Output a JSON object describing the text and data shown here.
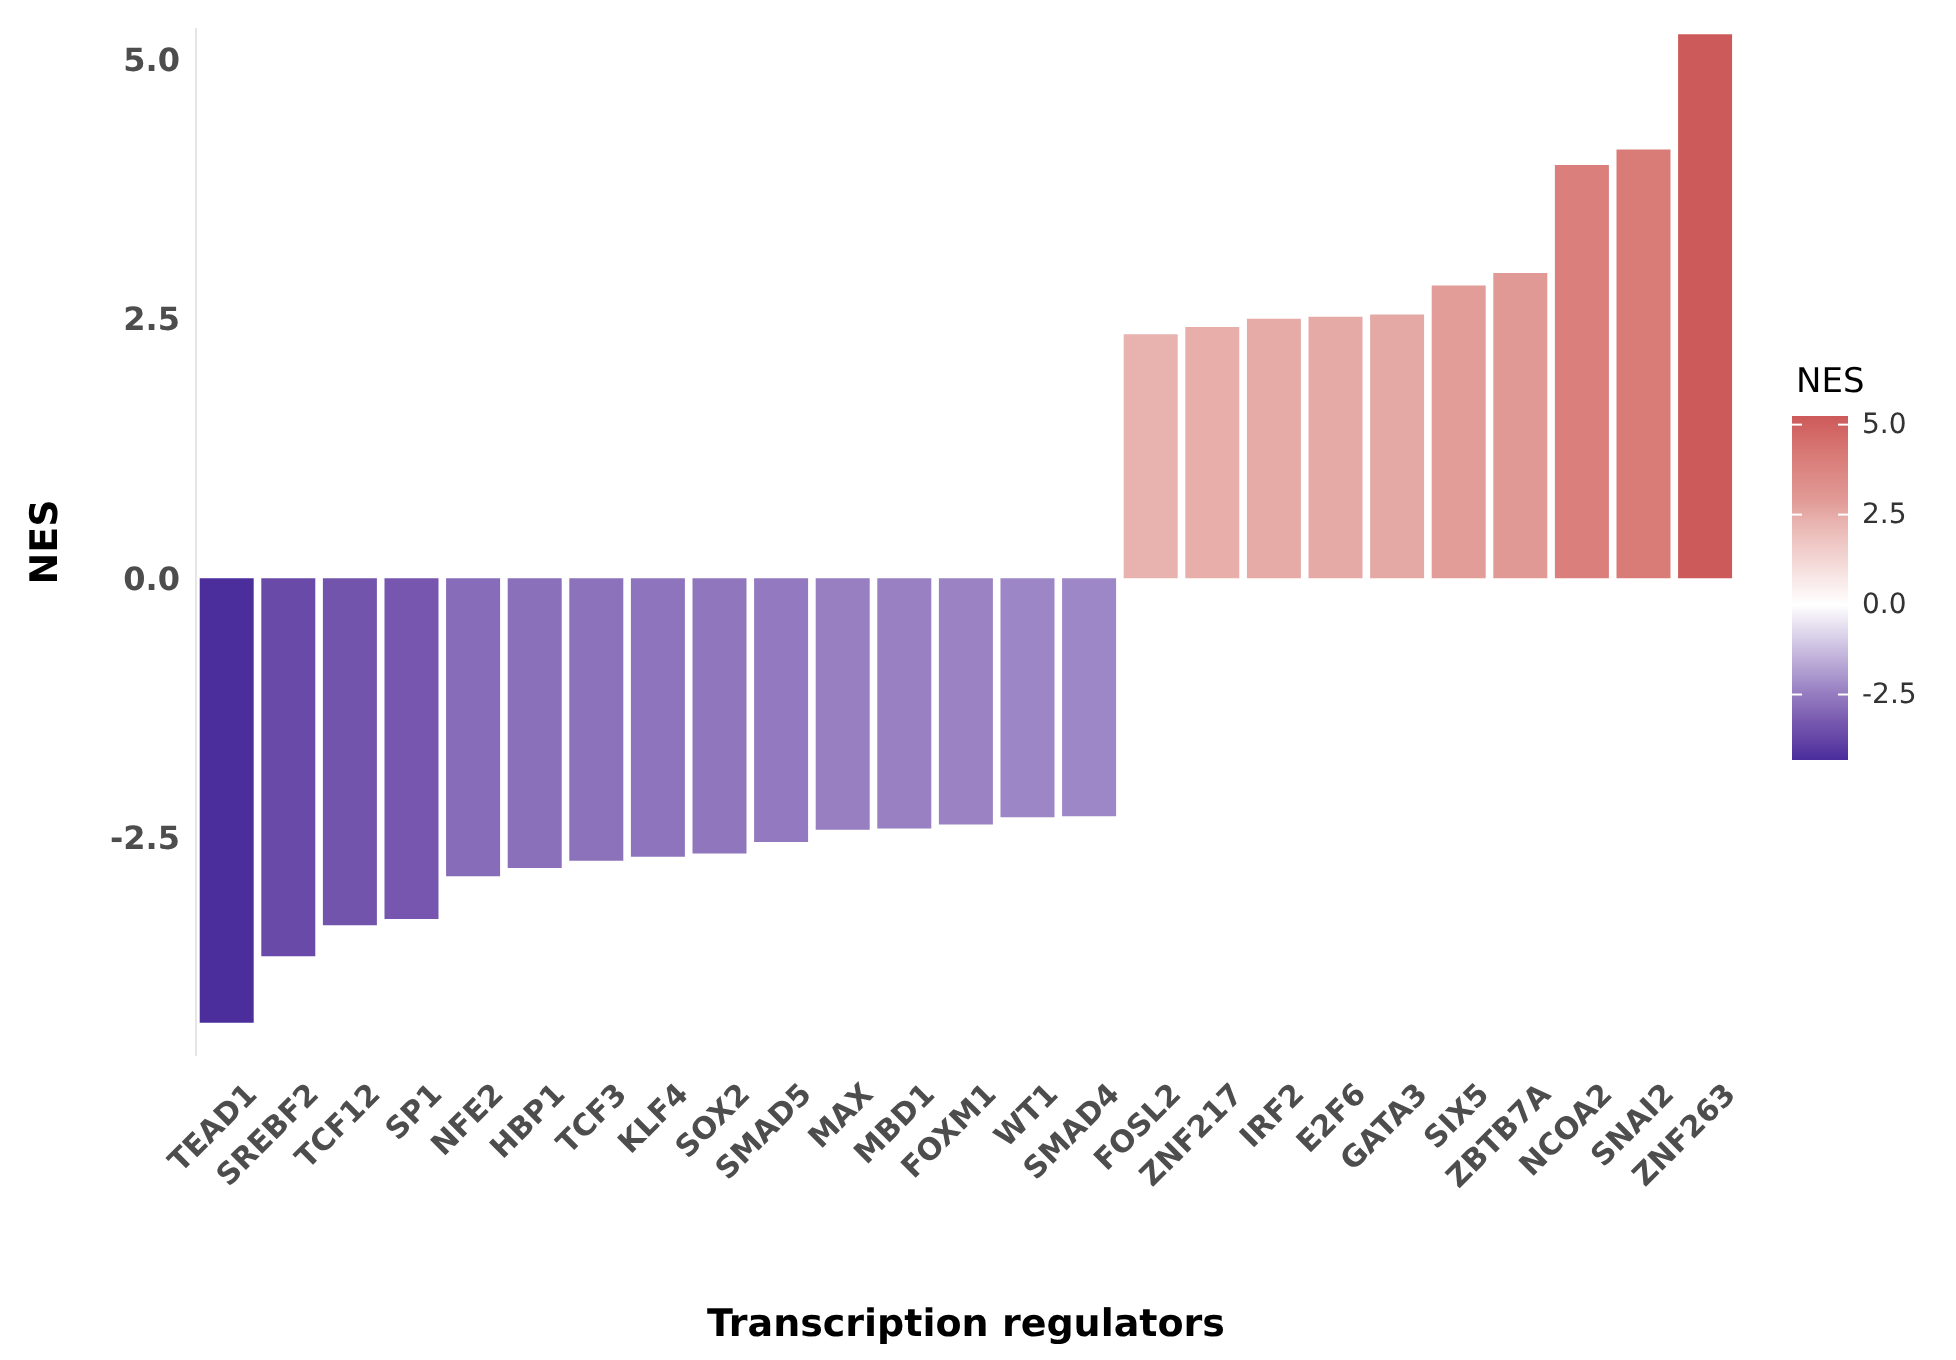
{
  "chart_data": {
    "type": "bar",
    "xlabel": "Transcription regulators",
    "ylabel": "NES",
    "clabel": "NES",
    "categories": [
      "TEAD1",
      "SREBF2",
      "TCF12",
      "SP1",
      "NFE2",
      "HBP1",
      "TCF3",
      "KLF4",
      "SOX2",
      "SMAD5",
      "MAX",
      "MBD1",
      "FOXM1",
      "WT1",
      "SMAD4",
      "FOSL2",
      "ZNF217",
      "IRF2",
      "E2F6",
      "GATA3",
      "SIX5",
      "ZBTB7A",
      "NCOA2",
      "SNAI2",
      "ZNF263"
    ],
    "values": [
      -4.28,
      -3.64,
      -3.34,
      -3.28,
      -2.87,
      -2.79,
      -2.72,
      -2.68,
      -2.65,
      -2.54,
      -2.42,
      -2.41,
      -2.37,
      -2.3,
      -2.29,
      2.35,
      2.42,
      2.5,
      2.52,
      2.54,
      2.82,
      2.94,
      3.98,
      4.13,
      5.24
    ],
    "colors": [
      "#4b2e9c",
      "#694aa8",
      "#7354ad",
      "#7656ae",
      "#876cb9",
      "#8a6fba",
      "#8c72bb",
      "#8e74bc",
      "#8f76bd",
      "#9379bf",
      "#977fc2",
      "#9880c2",
      "#9a82c3",
      "#9d86c5",
      "#9e87c6",
      "#e8b2ae",
      "#e7aeaa",
      "#e6aba7",
      "#e5aaa6",
      "#e5a9a5",
      "#e29d99",
      "#e19995",
      "#da7f7b",
      "#d97b77",
      "#cd5a5a"
    ],
    "ylim": [
      -4.6,
      5.3
    ],
    "yticks": [
      {
        "value": -2.5,
        "label": "-2.5"
      },
      {
        "value": 0,
        "label": "0.0"
      },
      {
        "value": 2.5,
        "label": "2.5"
      },
      {
        "value": 5,
        "label": "5.0"
      }
    ],
    "clim": [
      -4.32,
      5.24
    ],
    "cticks": [
      {
        "value": -2.5,
        "label": "-2.5"
      },
      {
        "value": 0,
        "label": "0.0"
      },
      {
        "value": 2.5,
        "label": "2.5"
      },
      {
        "value": 5,
        "label": "5.0"
      }
    ],
    "grid": false
  }
}
